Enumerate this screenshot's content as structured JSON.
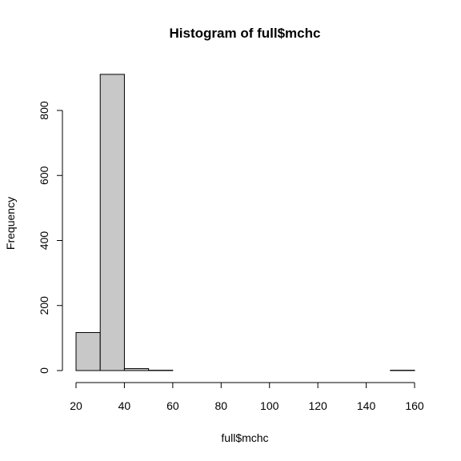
{
  "chart_data": {
    "type": "bar",
    "title": "Histogram of full$mchc",
    "xlabel": "full$mchc",
    "ylabel": "Frequency",
    "xlim": [
      20,
      160
    ],
    "ylim": [
      0,
      900
    ],
    "x_ticks": [
      20,
      40,
      60,
      80,
      100,
      120,
      140,
      160
    ],
    "y_ticks": [
      0,
      200,
      400,
      600,
      800
    ],
    "bins": [
      {
        "start": 20,
        "end": 30,
        "count": 117
      },
      {
        "start": 30,
        "end": 40,
        "count": 911
      },
      {
        "start": 40,
        "end": 50,
        "count": 6
      },
      {
        "start": 50,
        "end": 60,
        "count": 1
      },
      {
        "start": 60,
        "end": 70,
        "count": 0
      },
      {
        "start": 70,
        "end": 80,
        "count": 0
      },
      {
        "start": 80,
        "end": 90,
        "count": 0
      },
      {
        "start": 90,
        "end": 100,
        "count": 0
      },
      {
        "start": 100,
        "end": 110,
        "count": 0
      },
      {
        "start": 110,
        "end": 120,
        "count": 0
      },
      {
        "start": 120,
        "end": 130,
        "count": 0
      },
      {
        "start": 130,
        "end": 140,
        "count": 0
      },
      {
        "start": 140,
        "end": 150,
        "count": 0
      },
      {
        "start": 150,
        "end": 160,
        "count": 1
      }
    ],
    "bar_fill": "#c8c8c8",
    "bar_stroke": "#000000",
    "grid": false
  }
}
